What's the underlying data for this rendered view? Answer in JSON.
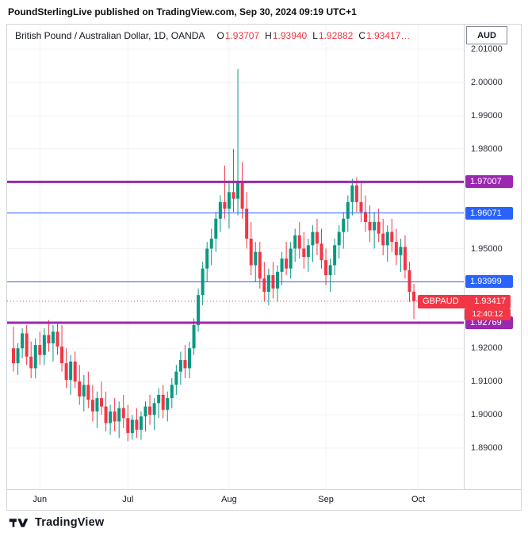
{
  "banner": {
    "text": "PoundSterlingLive published on TradingView.com, Sep 30, 2024 09:19 UTC+1"
  },
  "legend": {
    "title": "British Pound / Australian Dollar, 1D, OANDA",
    "value_color": "#F23645",
    "ohlc": [
      {
        "key": "O",
        "value": "1.93707"
      },
      {
        "key": "H",
        "value": "1.93940"
      },
      {
        "key": "L",
        "value": "1.92882"
      },
      {
        "key": "C",
        "value": "1.93417…"
      }
    ]
  },
  "price_axis": {
    "currency": "AUD"
  },
  "footer": {
    "brand": "TradingView"
  },
  "chart_data": {
    "type": "candlestick",
    "title": "British Pound / Australian Dollar, 1D, OANDA",
    "symbol": "GBPAUD",
    "timeframe": "1D",
    "exchange": "OANDA",
    "up_color": "#089981",
    "down_color": "#F23645",
    "grid": "faint",
    "legend_position": "top-left",
    "price_top": 2.0174,
    "price_bottom": 1.8776,
    "first_candle_x": 8,
    "candle_spacing": 5.55,
    "y_ticks": [
      {
        "label": "2.01000",
        "price": 2.01
      },
      {
        "label": "2.00000",
        "price": 2.0
      },
      {
        "label": "1.99000",
        "price": 1.99
      },
      {
        "label": "1.98000",
        "price": 1.98
      },
      {
        "label": "1.95000",
        "price": 1.95
      },
      {
        "label": "1.92000",
        "price": 1.92
      },
      {
        "label": "1.91000",
        "price": 1.91
      },
      {
        "label": "1.90000",
        "price": 1.9
      },
      {
        "label": "1.89000",
        "price": 1.89
      }
    ],
    "x_ticks": [
      {
        "label": "Jun",
        "index": 6
      },
      {
        "label": "Jul",
        "index": 26
      },
      {
        "label": "Aug",
        "index": 49
      },
      {
        "label": "Sep",
        "index": 71
      },
      {
        "label": "Oct",
        "index": 92
      }
    ],
    "levels": [
      {
        "price": 1.97007,
        "label": "1.97007",
        "color": "#9C27B0",
        "width": 3
      },
      {
        "price": 1.96071,
        "label": "1.96071",
        "color": "#2962FF",
        "width": 1
      },
      {
        "price": 1.93999,
        "label": "1.93999",
        "color": "#2962FF",
        "width": 1
      },
      {
        "price": 1.92769,
        "label": "1.92769",
        "color": "#9C27B0",
        "width": 3
      }
    ],
    "last": {
      "symbol": "GBPAUD",
      "price": 1.93417,
      "price_label": "1.93417",
      "countdown": "12:40:12",
      "color": "#F23645"
    },
    "open": 1.93707,
    "high": 1.9394,
    "low": 1.92882,
    "close": 1.93417,
    "candles": [
      [
        1.92,
        1.9265,
        1.913,
        1.9155
      ],
      [
        1.9155,
        1.9215,
        1.912,
        1.92
      ],
      [
        1.92,
        1.926,
        1.917,
        1.9245
      ],
      [
        1.9245,
        1.927,
        1.915,
        1.9175
      ],
      [
        1.9175,
        1.922,
        1.911,
        1.914
      ],
      [
        1.914,
        1.923,
        1.911,
        1.921
      ],
      [
        1.921,
        1.925,
        1.915,
        1.918
      ],
      [
        1.918,
        1.926,
        1.915,
        1.924
      ],
      [
        1.924,
        1.9285,
        1.919,
        1.9215
      ],
      [
        1.9215,
        1.927,
        1.916,
        1.925
      ],
      [
        1.925,
        1.928,
        1.918,
        1.9205
      ],
      [
        1.9205,
        1.927,
        1.913,
        1.9155
      ],
      [
        1.9155,
        1.92,
        1.908,
        1.9105
      ],
      [
        1.9105,
        1.918,
        1.906,
        1.916
      ],
      [
        1.916,
        1.919,
        1.908,
        1.91
      ],
      [
        1.91,
        1.915,
        1.903,
        1.9055
      ],
      [
        1.9055,
        1.912,
        1.901,
        1.909
      ],
      [
        1.909,
        1.913,
        1.902,
        1.9045
      ],
      [
        1.9045,
        1.909,
        1.898,
        1.901
      ],
      [
        1.901,
        1.907,
        1.896,
        1.905
      ],
      [
        1.905,
        1.91,
        1.9,
        1.9025
      ],
      [
        1.9025,
        1.907,
        1.895,
        1.8975
      ],
      [
        1.8975,
        1.903,
        1.894,
        1.901
      ],
      [
        1.901,
        1.905,
        1.895,
        1.898
      ],
      [
        1.898,
        1.904,
        1.893,
        1.902
      ],
      [
        1.902,
        1.906,
        1.896,
        1.899
      ],
      [
        1.899,
        1.903,
        1.892,
        1.8945
      ],
      [
        1.8945,
        1.9,
        1.8925,
        1.8985
      ],
      [
        1.8985,
        1.902,
        1.893,
        1.8955
      ],
      [
        1.8955,
        1.901,
        1.8925,
        1.8995
      ],
      [
        1.8995,
        1.904,
        1.895,
        1.9025
      ],
      [
        1.9025,
        1.906,
        1.897,
        1.9
      ],
      [
        1.9,
        1.905,
        1.8955,
        1.9035
      ],
      [
        1.9035,
        1.908,
        1.899,
        1.906
      ],
      [
        1.906,
        1.909,
        1.899,
        1.9015
      ],
      [
        1.9015,
        1.907,
        1.898,
        1.905
      ],
      [
        1.905,
        1.911,
        1.902,
        1.909
      ],
      [
        1.909,
        1.915,
        1.906,
        1.913
      ],
      [
        1.913,
        1.919,
        1.909,
        1.9165
      ],
      [
        1.9165,
        1.921,
        1.911,
        1.914
      ],
      [
        1.914,
        1.922,
        1.911,
        1.92
      ],
      [
        1.92,
        1.929,
        1.918,
        1.927
      ],
      [
        1.927,
        1.938,
        1.925,
        1.936
      ],
      [
        1.936,
        1.946,
        1.933,
        1.944
      ],
      [
        1.944,
        1.952,
        1.94,
        1.95
      ],
      [
        1.95,
        1.956,
        1.945,
        1.953
      ],
      [
        1.953,
        1.961,
        1.949,
        1.959
      ],
      [
        1.959,
        1.966,
        1.955,
        1.964
      ],
      [
        1.964,
        1.975,
        1.959,
        1.962
      ],
      [
        1.962,
        1.97,
        1.956,
        1.967
      ],
      [
        1.967,
        1.98,
        1.961,
        1.965
      ],
      [
        1.965,
        2.004,
        1.96,
        1.97
      ],
      [
        1.97,
        1.976,
        1.959,
        1.962
      ],
      [
        1.962,
        1.967,
        1.95,
        1.953
      ],
      [
        1.953,
        1.958,
        1.942,
        1.945
      ],
      [
        1.945,
        1.952,
        1.94,
        1.949
      ],
      [
        1.949,
        1.952,
        1.938,
        1.941
      ],
      [
        1.941,
        1.946,
        1.934,
        1.937
      ],
      [
        1.937,
        1.944,
        1.933,
        1.942
      ],
      [
        1.942,
        1.946,
        1.935,
        1.938
      ],
      [
        1.938,
        1.945,
        1.934,
        1.943
      ],
      [
        1.943,
        1.949,
        1.939,
        1.947
      ],
      [
        1.947,
        1.952,
        1.942,
        1.944
      ],
      [
        1.944,
        1.952,
        1.941,
        1.95
      ],
      [
        1.95,
        1.956,
        1.946,
        1.954
      ],
      [
        1.954,
        1.958,
        1.947,
        1.95
      ],
      [
        1.95,
        1.955,
        1.944,
        1.9475
      ],
      [
        1.9475,
        1.953,
        1.943,
        1.951
      ],
      [
        1.951,
        1.957,
        1.946,
        1.955
      ],
      [
        1.955,
        1.959,
        1.948,
        1.9515
      ],
      [
        1.9515,
        1.956,
        1.944,
        1.9465
      ],
      [
        1.9465,
        1.95,
        1.939,
        1.942
      ],
      [
        1.942,
        1.947,
        1.937,
        1.945
      ],
      [
        1.945,
        1.953,
        1.942,
        1.951
      ],
      [
        1.951,
        1.957,
        1.947,
        1.955
      ],
      [
        1.955,
        1.961,
        1.95,
        1.959
      ],
      [
        1.959,
        1.966,
        1.955,
        1.964
      ],
      [
        1.964,
        1.971,
        1.96,
        1.969
      ],
      [
        1.969,
        1.9715,
        1.961,
        1.964
      ],
      [
        1.964,
        1.97,
        1.958,
        1.961
      ],
      [
        1.961,
        1.966,
        1.955,
        1.958
      ],
      [
        1.958,
        1.963,
        1.952,
        1.9555
      ],
      [
        1.9555,
        1.961,
        1.95,
        1.958
      ],
      [
        1.958,
        1.962,
        1.952,
        1.9545
      ],
      [
        1.9545,
        1.959,
        1.948,
        1.951
      ],
      [
        1.951,
        1.957,
        1.946,
        1.955
      ],
      [
        1.955,
        1.959,
        1.949,
        1.952
      ],
      [
        1.952,
        1.956,
        1.945,
        1.948
      ],
      [
        1.948,
        1.953,
        1.943,
        1.9505
      ],
      [
        1.9505,
        1.954,
        1.941,
        1.9435
      ],
      [
        1.9435,
        1.946,
        1.934,
        1.937
      ],
      [
        1.93707,
        1.9394,
        1.92882,
        1.93417
      ]
    ]
  }
}
